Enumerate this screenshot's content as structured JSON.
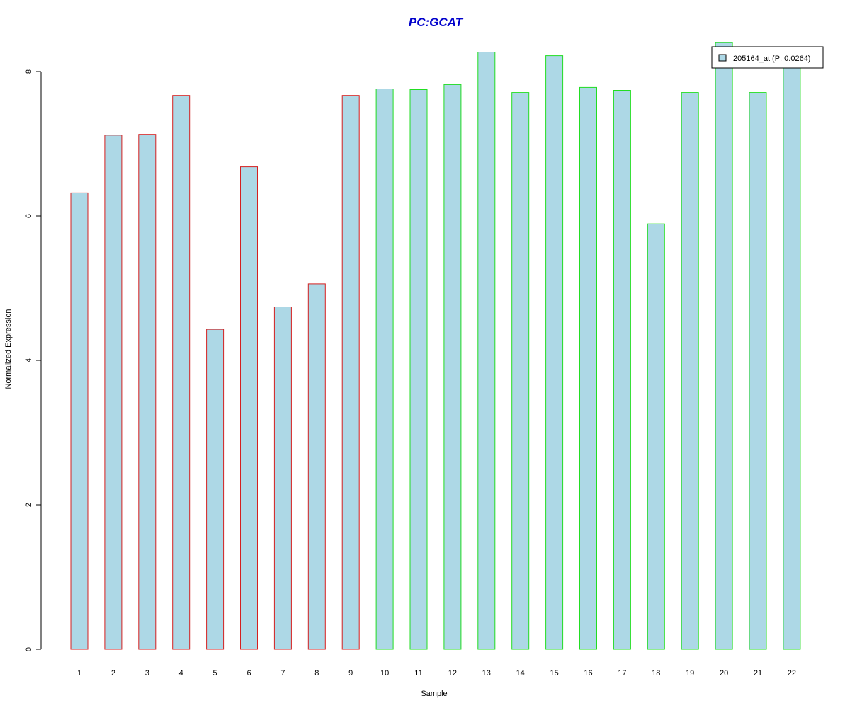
{
  "chart_data": {
    "type": "bar",
    "title": "PC:GCAT",
    "xlabel": "Sample",
    "ylabel": "Normalized Expression",
    "categories": [
      "1",
      "2",
      "3",
      "4",
      "5",
      "6",
      "7",
      "8",
      "9",
      "10",
      "11",
      "12",
      "13",
      "14",
      "15",
      "16",
      "17",
      "18",
      "19",
      "20",
      "21",
      "22"
    ],
    "series": [
      {
        "name": "205164_at (P: 0.0264)",
        "values": [
          6.32,
          7.12,
          7.13,
          7.67,
          4.43,
          6.68,
          4.74,
          5.06,
          7.67,
          7.76,
          7.75,
          7.82,
          8.27,
          7.71,
          8.22,
          7.78,
          7.74,
          5.89,
          7.71,
          8.4,
          7.71,
          8.12
        ]
      }
    ],
    "groups": [
      {
        "samples": [
          1,
          9
        ],
        "border_color": "#d42020"
      },
      {
        "samples": [
          10,
          22
        ],
        "border_color": "#22dd22"
      }
    ],
    "bar_fill": "#add8e6",
    "title_color": "#0000cc",
    "yticks": [
      0,
      2,
      4,
      6,
      8
    ],
    "ylim": [
      0,
      8.4
    ],
    "legend_position": "top-right",
    "grid": false
  }
}
